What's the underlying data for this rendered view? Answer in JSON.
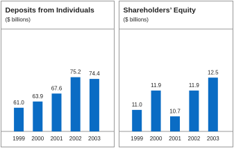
{
  "chart_data": [
    {
      "type": "bar",
      "title": "Deposits from Individuals",
      "subtitle": "($ billions)",
      "categories": [
        "1999",
        "2000",
        "2001",
        "2002",
        "2003"
      ],
      "values": [
        61.0,
        63.9,
        67.6,
        75.2,
        74.4
      ],
      "value_labels": [
        "61.0",
        "63.9",
        "67.6",
        "75.2",
        "74.4"
      ],
      "color": "#0a6cc4",
      "ylim": [
        50,
        95
      ]
    },
    {
      "type": "bar",
      "title": "Shareholders’ Equity",
      "subtitle": "($ billions)",
      "categories": [
        "1999",
        "2000",
        "2001",
        "2002",
        "2003"
      ],
      "values": [
        11.0,
        11.9,
        10.7,
        11.9,
        12.5
      ],
      "value_labels": [
        "11.0",
        "11.9",
        "10.7",
        "11.9",
        "12.5"
      ],
      "color": "#0a6cc4",
      "ylim": [
        10,
        14.5
      ]
    }
  ]
}
